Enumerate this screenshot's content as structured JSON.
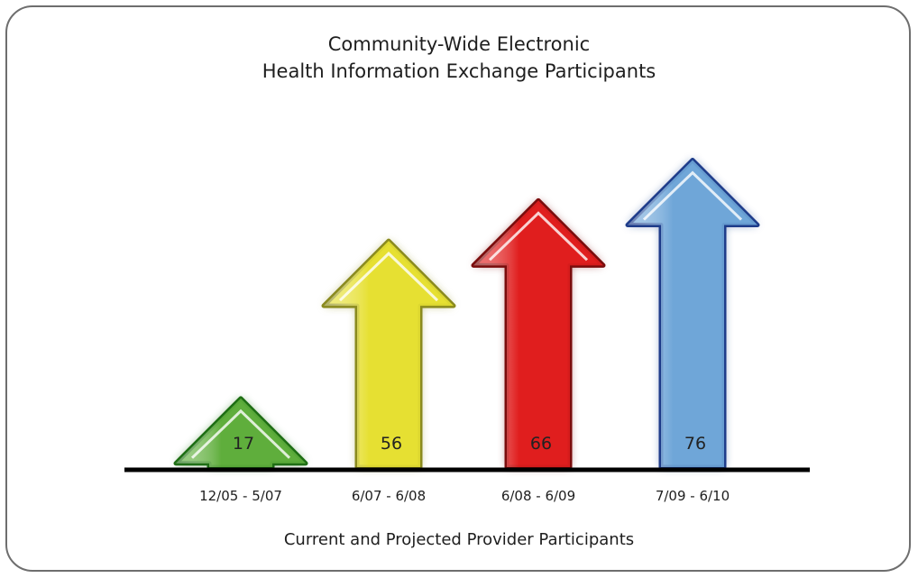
{
  "chart_data": {
    "type": "bar",
    "title": "Community-Wide Electronic",
    "subtitle": "Health Information Exchange Participants",
    "xlabel": "Current and Projected Provider Participants",
    "ylabel": "",
    "categories": [
      "12/05 - 5/07",
      "6/07 - 6/08",
      "6/08 - 6/09",
      "7/09 - 6/10"
    ],
    "values": [
      17,
      56,
      66,
      76
    ],
    "colors": [
      "#5fae3c",
      "#e6e032",
      "#e01e1e",
      "#6fa6d8"
    ],
    "border_colors": [
      "#1e6e14",
      "#8a8a1e",
      "#7a0c0c",
      "#1e3c8a"
    ],
    "ylim": [
      0,
      100
    ],
    "grid": false,
    "legend": "none",
    "bar_style": "arrow"
  }
}
